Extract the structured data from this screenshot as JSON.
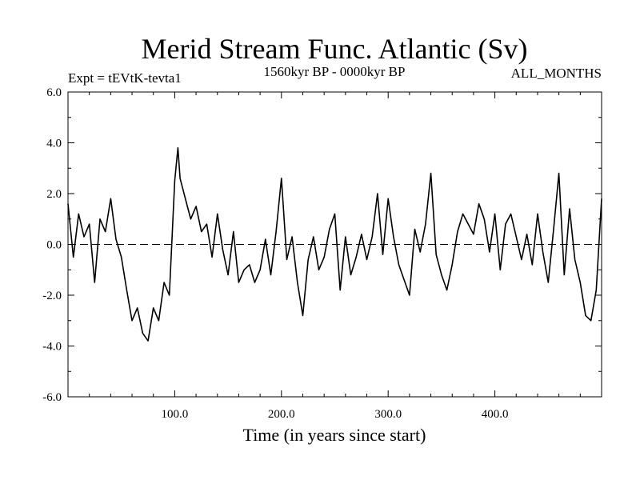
{
  "chart_data": {
    "type": "line",
    "title": "Merid Stream Func. Atlantic (Sv)",
    "subtitle_left": "Expt = tEVtK-tevta1",
    "subtitle_center": "1560kyr BP - 0000kyr BP",
    "subtitle_right": "ALL_MONTHS",
    "xlabel": "Time (in years since start)",
    "ylabel": "",
    "xlim": [
      0,
      500
    ],
    "ylim": [
      -6,
      6
    ],
    "x_ticks": [
      100,
      200,
      300,
      400
    ],
    "x_tick_labels": [
      "100.0",
      "200.0",
      "300.0",
      "400.0"
    ],
    "y_ticks": [
      -6,
      -4,
      -2,
      0,
      2,
      4,
      6
    ],
    "y_tick_labels": [
      "-6.0",
      "-4.0",
      "-2.0",
      "0.0",
      "2.0",
      "4.0",
      "6.0"
    ],
    "zero_line": "dashed",
    "series": [
      {
        "name": "Merid Stream Func. Atlantic",
        "x": [
          0,
          5,
          10,
          15,
          20,
          25,
          30,
          35,
          40,
          45,
          50,
          55,
          60,
          65,
          70,
          75,
          80,
          85,
          90,
          95,
          100,
          103,
          105,
          110,
          115,
          120,
          125,
          130,
          135,
          140,
          145,
          150,
          155,
          160,
          165,
          170,
          175,
          180,
          185,
          190,
          195,
          200,
          205,
          210,
          215,
          220,
          225,
          230,
          235,
          240,
          245,
          250,
          255,
          260,
          265,
          270,
          275,
          280,
          285,
          290,
          295,
          300,
          305,
          310,
          315,
          320,
          325,
          330,
          335,
          340,
          345,
          350,
          355,
          360,
          365,
          370,
          375,
          380,
          385,
          390,
          395,
          400,
          405,
          410,
          415,
          420,
          425,
          430,
          435,
          440,
          445,
          450,
          455,
          460,
          465,
          470,
          475,
          480,
          485,
          490,
          495,
          500
        ],
        "values": [
          1.6,
          -0.5,
          1.2,
          0.3,
          0.8,
          -1.5,
          1.0,
          0.5,
          1.8,
          0.2,
          -0.5,
          -1.8,
          -3.0,
          -2.5,
          -3.5,
          -3.8,
          -2.5,
          -3.0,
          -1.5,
          -2.0,
          2.5,
          3.8,
          2.6,
          1.8,
          1.0,
          1.5,
          0.5,
          0.8,
          -0.5,
          1.2,
          -0.2,
          -1.2,
          0.5,
          -1.5,
          -1.0,
          -0.8,
          -1.5,
          -1.0,
          0.2,
          -1.2,
          0.5,
          2.6,
          -0.6,
          0.3,
          -1.5,
          -2.8,
          -0.6,
          0.3,
          -1.0,
          -0.5,
          0.6,
          1.2,
          -1.8,
          0.3,
          -1.2,
          -0.5,
          0.4,
          -0.6,
          0.3,
          2.0,
          -0.4,
          1.8,
          0.3,
          -0.8,
          -1.4,
          -2.0,
          0.6,
          -0.3,
          0.8,
          2.8,
          -0.4,
          -1.2,
          -1.8,
          -0.8,
          0.5,
          1.2,
          0.8,
          0.4,
          1.6,
          1.0,
          -0.3,
          1.2,
          -1.0,
          0.8,
          1.2,
          0.3,
          -0.6,
          0.4,
          -0.8,
          1.2,
          -0.3,
          -1.5,
          0.6,
          2.8,
          -1.2,
          1.4,
          -0.6,
          -1.5,
          -2.8,
          -3.0,
          -1.8,
          1.8
        ]
      }
    ]
  }
}
